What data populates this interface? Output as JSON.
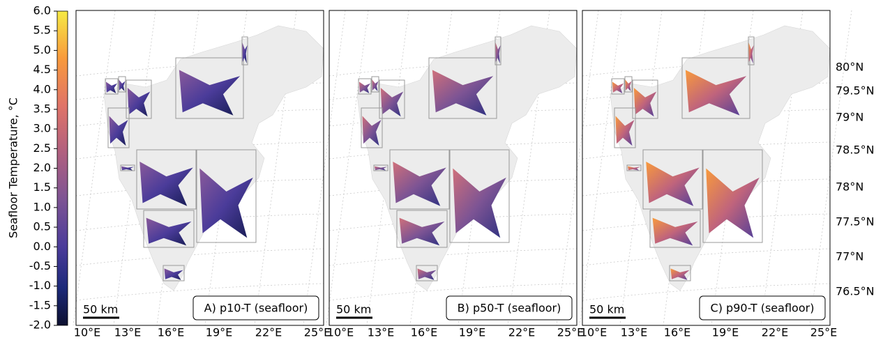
{
  "colorbar": {
    "label": "Seafloor Temperature, °C",
    "range": [
      -2.0,
      6.0
    ],
    "ticks": [
      {
        "value": 6,
        "label": "6.0"
      },
      {
        "value": 5.5,
        "label": "5.5"
      },
      {
        "value": 5,
        "label": "5.0"
      },
      {
        "value": 4.5,
        "label": "4.5"
      },
      {
        "value": 4,
        "label": "4.0"
      },
      {
        "value": 3.5,
        "label": "3.5"
      },
      {
        "value": 3,
        "label": "3.0"
      },
      {
        "value": 2.5,
        "label": "2.5"
      },
      {
        "value": 2,
        "label": "2.0"
      },
      {
        "value": 1.5,
        "label": "1.5"
      },
      {
        "value": 1,
        "label": "1.0"
      },
      {
        "value": 0.5,
        "label": "0.5"
      },
      {
        "value": 0,
        "label": "0.0"
      },
      {
        "value": -0.5,
        "label": "-0.5"
      },
      {
        "value": -1,
        "label": "-1.0"
      },
      {
        "value": -1.5,
        "label": "-1.5"
      },
      {
        "value": -2,
        "label": "-2.0"
      }
    ]
  },
  "panels": [
    {
      "label": "A) p10-T (seafloor)",
      "scale_bar": "50 km"
    },
    {
      "label": "B) p50-T (seafloor)",
      "scale_bar": "50 km"
    },
    {
      "label": "C) p90-T (seafloor)",
      "scale_bar": "50 km"
    }
  ],
  "longitude_labels": [
    "10°E",
    "13°E",
    "16°E",
    "19°E",
    "22°E",
    "25°E"
  ],
  "latitude_labels": [
    "80°N",
    "79.5°N",
    "79°N",
    "78.5°N",
    "78°N",
    "77.5°N",
    "77°N",
    "76.5°N"
  ]
}
